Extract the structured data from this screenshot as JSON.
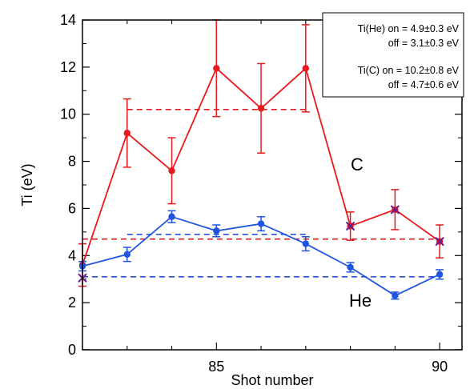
{
  "chart_data": {
    "type": "line",
    "xlabel": "Shot number",
    "ylabel": "Ti (eV)",
    "xlim": [
      82,
      90.5
    ],
    "ylim": [
      0,
      14
    ],
    "x_ticks": [
      85,
      90
    ],
    "y_ticks": [
      0,
      2,
      4,
      6,
      8,
      10,
      12,
      14
    ],
    "grid": false,
    "colors": {
      "C": "#e8191e",
      "He": "#1f55e0",
      "marker_x": "#6b1a8c"
    },
    "series": [
      {
        "name": "C",
        "color": "#e8191e",
        "x": [
          82,
          83,
          84,
          85,
          86,
          87,
          88,
          89,
          90
        ],
        "y": [
          3.6,
          9.2,
          7.6,
          11.95,
          10.25,
          11.95,
          5.25,
          5.95,
          4.6
        ],
        "err": [
          0.9,
          1.45,
          1.4,
          2.05,
          1.9,
          1.85,
          0.6,
          0.85,
          0.7
        ]
      },
      {
        "name": "He",
        "color": "#1f55e0",
        "x": [
          82,
          83,
          84,
          85,
          86,
          87,
          88,
          89,
          90
        ],
        "y": [
          3.55,
          4.05,
          5.65,
          5.05,
          5.35,
          4.5,
          3.5,
          2.3,
          3.2
        ],
        "err": [
          0.2,
          0.3,
          0.25,
          0.25,
          0.3,
          0.3,
          0.2,
          0.15,
          0.2
        ]
      }
    ],
    "reference_lines": [
      {
        "series": "C",
        "state": "on",
        "y": 10.2,
        "x_range": [
          83,
          87
        ]
      },
      {
        "series": "C",
        "state": "off",
        "y": 4.7,
        "x_range": [
          82,
          90
        ]
      },
      {
        "series": "He",
        "state": "on",
        "y": 4.9,
        "x_range": [
          83,
          87
        ]
      },
      {
        "series": "He",
        "state": "off",
        "y": 3.1,
        "x_range": [
          82,
          90
        ]
      }
    ],
    "x_markers": [
      {
        "x": 82,
        "y": 3.05
      },
      {
        "x": 88,
        "y": 5.25
      },
      {
        "x": 89,
        "y": 5.95
      },
      {
        "x": 90,
        "y": 4.6
      }
    ],
    "annotations": {
      "legend_he_on": "Ti(He) on = 4.9±0.3 eV",
      "legend_he_off": "off = 3.1±0.3 eV",
      "legend_c_on": "Ti(C) on = 10.2±0.8 eV",
      "legend_c_off": "off = 4.7±0.6 eV",
      "label_c": "C",
      "label_he": "He"
    },
    "legend_position": "top-right"
  }
}
